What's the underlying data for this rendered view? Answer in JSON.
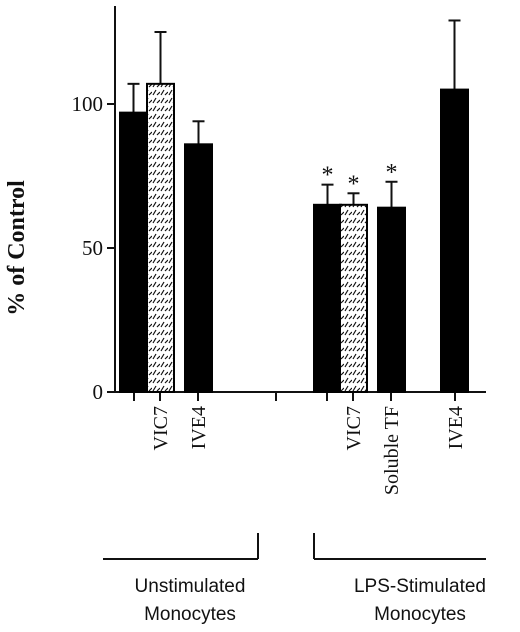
{
  "chart_data": {
    "type": "bar",
    "ylabel": "% of  Control",
    "ylim": [
      0,
      135
    ],
    "yticks": [
      0,
      50,
      100
    ],
    "bars": [
      {
        "category": "VIC7",
        "group": 0,
        "style": "solid",
        "value": 97,
        "error": 10,
        "star": false
      },
      {
        "category": "VIC7",
        "group": 0,
        "style": "hatched",
        "value": 107,
        "error": 18,
        "star": false
      },
      {
        "category": "IVE4",
        "group": 0,
        "style": "solid",
        "value": 86,
        "error": 8,
        "star": false
      },
      {
        "category": "VIC7",
        "group": 1,
        "style": "solid",
        "value": 65,
        "error": 7,
        "star": true
      },
      {
        "category": "VIC7",
        "group": 1,
        "style": "hatched",
        "value": 65,
        "error": 4,
        "star": true
      },
      {
        "category": "Soluble TF",
        "group": 1,
        "style": "solid",
        "value": 64,
        "error": 9,
        "star": true
      },
      {
        "category": "IVE4",
        "group": 1,
        "style": "solid",
        "value": 105,
        "error": 24,
        "star": false
      }
    ],
    "category_labels": [
      {
        "text": "VIC7",
        "group": 0
      },
      {
        "text": "IVE4",
        "group": 0
      },
      {
        "text": "VIC7",
        "group": 1
      },
      {
        "text": "Soluble TF",
        "group": 1
      },
      {
        "text": "IVE4",
        "group": 1
      }
    ],
    "star_symbol": "*",
    "groups": [
      {
        "line1": "Unstimulated",
        "line2": "Monocytes"
      },
      {
        "line1": "LPS-Stimulated",
        "line2": "Monocytes"
      }
    ]
  }
}
